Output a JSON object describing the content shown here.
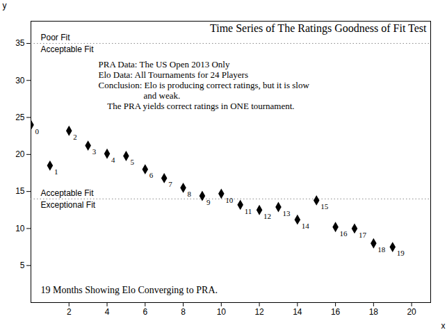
{
  "chart_data": {
    "type": "scatter",
    "title": "Time Series of The Ratings Goodness of Fit Test",
    "x_label": "x",
    "y_label": "y",
    "x": [
      0,
      1,
      2,
      3,
      4,
      5,
      6,
      7,
      8,
      9,
      10,
      11,
      12,
      13,
      14,
      15,
      16,
      17,
      18,
      19
    ],
    "values": [
      24.0,
      18.5,
      23.2,
      21.2,
      20.1,
      19.8,
      18.0,
      16.8,
      15.5,
      14.4,
      14.7,
      13.2,
      12.5,
      12.9,
      11.2,
      13.8,
      10.2,
      10.0,
      8.0,
      7.5
    ],
    "point_labels": [
      "0",
      "1",
      "2",
      "3",
      "4",
      "5",
      "6",
      "7",
      "8",
      "9",
      "10",
      "11",
      "12",
      "13",
      "14",
      "15",
      "16",
      "17",
      "18",
      "19"
    ],
    "color": "black",
    "marker": "diamond",
    "xlim": [
      0,
      21
    ],
    "ylim": [
      0,
      38
    ],
    "xticks": [
      2,
      4,
      6,
      8,
      10,
      12,
      14,
      16,
      18,
      20
    ],
    "yticks": [
      5,
      10,
      15,
      20,
      25,
      30,
      35
    ],
    "grid": false,
    "reference_lines": [
      {
        "value": 35,
        "label_above": "Poor Fit",
        "label_below": "Acceptable Fit",
        "color": "#888888",
        "line_style": "dotted"
      },
      {
        "value": 14,
        "label_above": "Acceptable Fit",
        "label_below": "Exceptional Fit",
        "color": "#888888",
        "line_style": "dotted"
      }
    ],
    "annotation": [
      "PRA Data: The US Open 2013 Only",
      "Elo Data: All Tournaments for 24 Players",
      "Conclusion: Elo is producing correct ratings, but it is slow",
      "                    and weak.",
      "    The PRA yields correct ratings in ONE tournament."
    ],
    "bottom_text": "19 Months Showing Elo Converging to PRA."
  }
}
